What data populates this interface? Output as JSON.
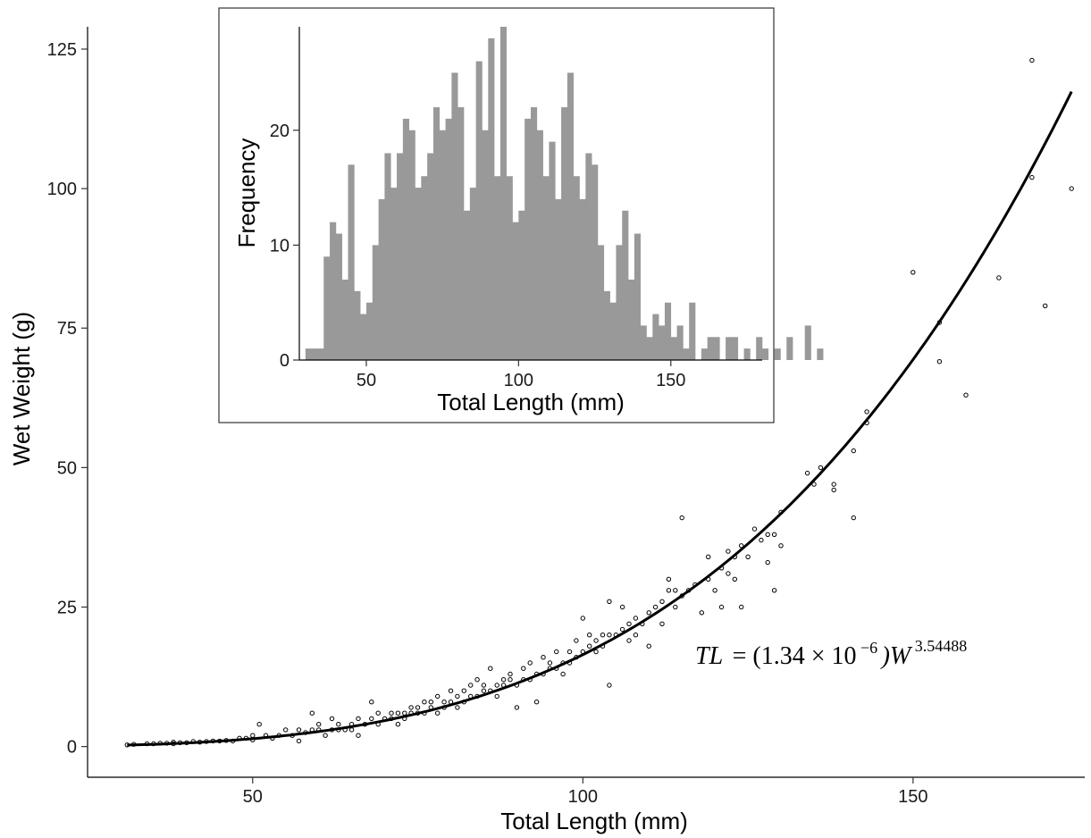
{
  "chart_data": [
    {
      "type": "scatter",
      "title": "",
      "xlabel": "Total Length (mm)",
      "ylabel": "Wet Weight (g)",
      "xlim": [
        25,
        176
      ],
      "ylim": [
        -5.5,
        129
      ],
      "xticks": [
        50,
        100,
        150
      ],
      "yticks": [
        0,
        25,
        50,
        75,
        100,
        125
      ],
      "grid": false,
      "legend": "none",
      "point_style": "open-circle",
      "fit": {
        "type": "power",
        "a": 1.34e-06,
        "b": 3.54488,
        "x_range": [
          31,
          174
        ],
        "equation_left": "TL",
        "equation_right": "= (1.34 × 10",
        "equation_exp_text": "−6",
        "equation_tail": ")W",
        "equation_power_text": "3.54488"
      },
      "points": [
        [
          31,
          0.3
        ],
        [
          32,
          0.4
        ],
        [
          34,
          0.5
        ],
        [
          35,
          0.5
        ],
        [
          36,
          0.6
        ],
        [
          37,
          0.6
        ],
        [
          38,
          0.8
        ],
        [
          38,
          0.5
        ],
        [
          39,
          0.7
        ],
        [
          40,
          0.7
        ],
        [
          41,
          0.9
        ],
        [
          42,
          0.8
        ],
        [
          43,
          0.9
        ],
        [
          44,
          1
        ],
        [
          45,
          1
        ],
        [
          46,
          1.1
        ],
        [
          47,
          1
        ],
        [
          48,
          1.5
        ],
        [
          49,
          1.5
        ],
        [
          50,
          1.2
        ],
        [
          50,
          2
        ],
        [
          51,
          4
        ],
        [
          52,
          2
        ],
        [
          53,
          1.5
        ],
        [
          54,
          2
        ],
        [
          55,
          3
        ],
        [
          56,
          2
        ],
        [
          57,
          3
        ],
        [
          57,
          1
        ],
        [
          58,
          2.5
        ],
        [
          59,
          3
        ],
        [
          59,
          6
        ],
        [
          60,
          3
        ],
        [
          60,
          4
        ],
        [
          61,
          2
        ],
        [
          62,
          3
        ],
        [
          62,
          5
        ],
        [
          63,
          3
        ],
        [
          63,
          4
        ],
        [
          64,
          3
        ],
        [
          65,
          4
        ],
        [
          65,
          3
        ],
        [
          66,
          5
        ],
        [
          66,
          2
        ],
        [
          67,
          4
        ],
        [
          68,
          5
        ],
        [
          68,
          8
        ],
        [
          69,
          4
        ],
        [
          69,
          6
        ],
        [
          70,
          5
        ],
        [
          71,
          5
        ],
        [
          71,
          6
        ],
        [
          72,
          4
        ],
        [
          72,
          6
        ],
        [
          73,
          6
        ],
        [
          73,
          5
        ],
        [
          74,
          6
        ],
        [
          74,
          7
        ],
        [
          75,
          7
        ],
        [
          75,
          6
        ],
        [
          76,
          6
        ],
        [
          76,
          8
        ],
        [
          77,
          7
        ],
        [
          77,
          8
        ],
        [
          78,
          9
        ],
        [
          78,
          6
        ],
        [
          79,
          8
        ],
        [
          79,
          7
        ],
        [
          80,
          8
        ],
        [
          80,
          10
        ],
        [
          81,
          9
        ],
        [
          81,
          7
        ],
        [
          82,
          10
        ],
        [
          82,
          8
        ],
        [
          83,
          9
        ],
        [
          83,
          11
        ],
        [
          84,
          9
        ],
        [
          84,
          12
        ],
        [
          85,
          10
        ],
        [
          85,
          11
        ],
        [
          86,
          10
        ],
        [
          86,
          14
        ],
        [
          87,
          11
        ],
        [
          87,
          9
        ],
        [
          88,
          12
        ],
        [
          88,
          11
        ],
        [
          89,
          12
        ],
        [
          89,
          13
        ],
        [
          90,
          11
        ],
        [
          90,
          7
        ],
        [
          91,
          12
        ],
        [
          91,
          14
        ],
        [
          92,
          12
        ],
        [
          92,
          15
        ],
        [
          93,
          13
        ],
        [
          93,
          8
        ],
        [
          94,
          13
        ],
        [
          94,
          16
        ],
        [
          95,
          14
        ],
        [
          95,
          15
        ],
        [
          96,
          14
        ],
        [
          96,
          17
        ],
        [
          97,
          15
        ],
        [
          97,
          13
        ],
        [
          98,
          17
        ],
        [
          98,
          15
        ],
        [
          99,
          16
        ],
        [
          99,
          19
        ],
        [
          100,
          17
        ],
        [
          100,
          23
        ],
        [
          101,
          18
        ],
        [
          101,
          20
        ],
        [
          102,
          19
        ],
        [
          102,
          17
        ],
        [
          103,
          20
        ],
        [
          103,
          18
        ],
        [
          104,
          20
        ],
        [
          104,
          11
        ],
        [
          104,
          26
        ],
        [
          105,
          20
        ],
        [
          106,
          21
        ],
        [
          106,
          25
        ],
        [
          107,
          19
        ],
        [
          107,
          22
        ],
        [
          108,
          23
        ],
        [
          108,
          20
        ],
        [
          109,
          22
        ],
        [
          110,
          24
        ],
        [
          110,
          18
        ],
        [
          111,
          25
        ],
        [
          112,
          26
        ],
        [
          112,
          22
        ],
        [
          113,
          30
        ],
        [
          113,
          28
        ],
        [
          114,
          28
        ],
        [
          114,
          25
        ],
        [
          115,
          41
        ],
        [
          115,
          27
        ],
        [
          116,
          28
        ],
        [
          117,
          29
        ],
        [
          118,
          24
        ],
        [
          119,
          34
        ],
        [
          119,
          30
        ],
        [
          120,
          28
        ],
        [
          121,
          32
        ],
        [
          121,
          25
        ],
        [
          122,
          35
        ],
        [
          122,
          31
        ],
        [
          123,
          34
        ],
        [
          123,
          30
        ],
        [
          124,
          36
        ],
        [
          124,
          25
        ],
        [
          125,
          34
        ],
        [
          126,
          39
        ],
        [
          127,
          37
        ],
        [
          128,
          33
        ],
        [
          128,
          38
        ],
        [
          129,
          38
        ],
        [
          129,
          28
        ],
        [
          130,
          36
        ],
        [
          130,
          42
        ],
        [
          134,
          49
        ],
        [
          135,
          47
        ],
        [
          136,
          50
        ],
        [
          138,
          47
        ],
        [
          138,
          46
        ],
        [
          141,
          41
        ],
        [
          141,
          53
        ],
        [
          143,
          58
        ],
        [
          143,
          60
        ],
        [
          150,
          85
        ],
        [
          154,
          76
        ],
        [
          154,
          69
        ],
        [
          158,
          63
        ],
        [
          163,
          84
        ],
        [
          168,
          123
        ],
        [
          168,
          102
        ],
        [
          170,
          79
        ],
        [
          174,
          100
        ]
      ]
    },
    {
      "type": "bar",
      "title": "",
      "xlabel": "Total Length (mm)",
      "ylabel": "Frequency",
      "xlim": [
        28,
        180
      ],
      "ylim": [
        0,
        29
      ],
      "xticks": [
        50,
        100,
        150
      ],
      "yticks": [
        0,
        10,
        20
      ],
      "bin_start": 30,
      "bin_width": 2,
      "bar_color": "#999999",
      "values": [
        1,
        1,
        1,
        9,
        12,
        11,
        7,
        17,
        6,
        4,
        5,
        10,
        14,
        18,
        15,
        18,
        21,
        20,
        15,
        16,
        18,
        22,
        20,
        21,
        25,
        22,
        13,
        15,
        26,
        20,
        28,
        16,
        29,
        16,
        12,
        13,
        21,
        22,
        20,
        16,
        19,
        14,
        22,
        25,
        16,
        14,
        18,
        17,
        10,
        6,
        5,
        10,
        13,
        7,
        11,
        3,
        2,
        4,
        3,
        5,
        2,
        3,
        1,
        5,
        0,
        1,
        2,
        2,
        0,
        2,
        2,
        0,
        1,
        0,
        2,
        1,
        0,
        1,
        0,
        2,
        0,
        0,
        3,
        0,
        1
      ]
    }
  ]
}
